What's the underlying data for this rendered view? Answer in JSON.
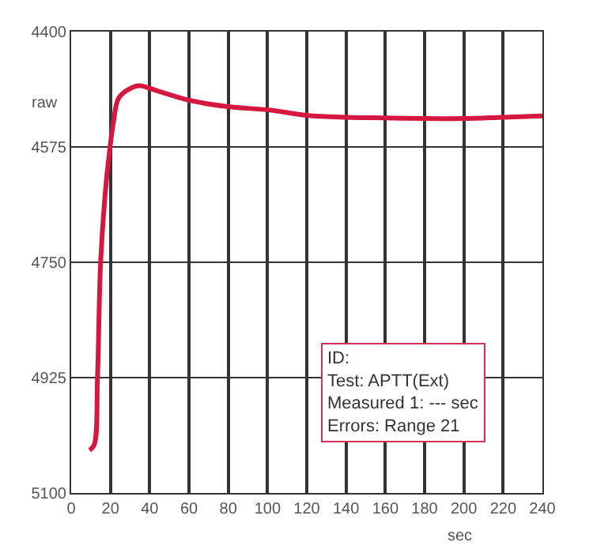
{
  "chart_data": {
    "type": "line",
    "ylabel": "raw",
    "xlabel": "sec",
    "x": [
      9.3,
      11.7,
      13.4,
      15,
      17.5,
      19.8,
      21.5,
      24,
      28,
      34.4,
      44,
      60,
      80,
      101,
      120,
      140,
      160,
      180,
      200,
      220,
      240
    ],
    "series": [
      {
        "color": "#d6173f",
        "values": [
          5035,
          5027,
          4925,
          4750,
          4640,
          4575,
          4538,
          4502,
          4490,
          4482,
          4490,
          4504,
          4514,
          4519,
          4527,
          4530,
          4531,
          4532,
          4532,
          4530,
          4528
        ]
      }
    ],
    "xlim": [
      0,
      240
    ],
    "xticks": [
      0,
      20,
      40,
      60,
      80,
      100,
      120,
      140,
      160,
      180,
      200,
      220,
      240
    ],
    "ylim": [
      5100,
      4400
    ],
    "yticks": [
      4400,
      4575,
      4750,
      4925,
      5100
    ],
    "grid": true,
    "legend": false,
    "marker": "none",
    "line_style": "solid",
    "annotations": [
      "ID:\nTest: APTT(Ext)\nMeasured 1: --- sec\nErrors: Range 21"
    ]
  }
}
